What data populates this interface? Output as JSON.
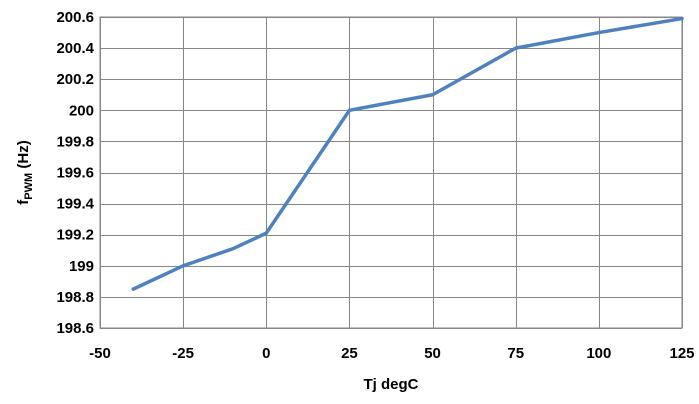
{
  "chart_data": {
    "type": "line",
    "xlabel": "Tj degC",
    "ylabel": {
      "main": "f",
      "subscript": "PWM",
      "unit": " (Hz)"
    },
    "xlim": [
      -50,
      125
    ],
    "ylim": [
      198.6,
      200.6
    ],
    "xticks": [
      -50,
      -25,
      0,
      25,
      50,
      75,
      100,
      125
    ],
    "xtick_labels": [
      "-50",
      "-25",
      "0",
      "25",
      "50",
      "75",
      "100",
      "125"
    ],
    "yticks": [
      198.6,
      198.8,
      199,
      199.2,
      199.4,
      199.6,
      199.8,
      200,
      200.2,
      200.4,
      200.6
    ],
    "ytick_labels": [
      "198.6",
      "198.8",
      "199",
      "199.2",
      "199.4",
      "199.6",
      "199.8",
      "200",
      "200.2",
      "200.4",
      "200.6"
    ],
    "grid": true,
    "legend": "none",
    "series": [
      {
        "color": "#4f81bd",
        "x": [
          -40,
          -25,
          -10,
          0,
          25,
          50,
          75,
          100,
          125
        ],
        "y": [
          198.85,
          199.0,
          199.11,
          199.21,
          200.0,
          200.1,
          200.4,
          200.5,
          200.59
        ]
      }
    ]
  }
}
